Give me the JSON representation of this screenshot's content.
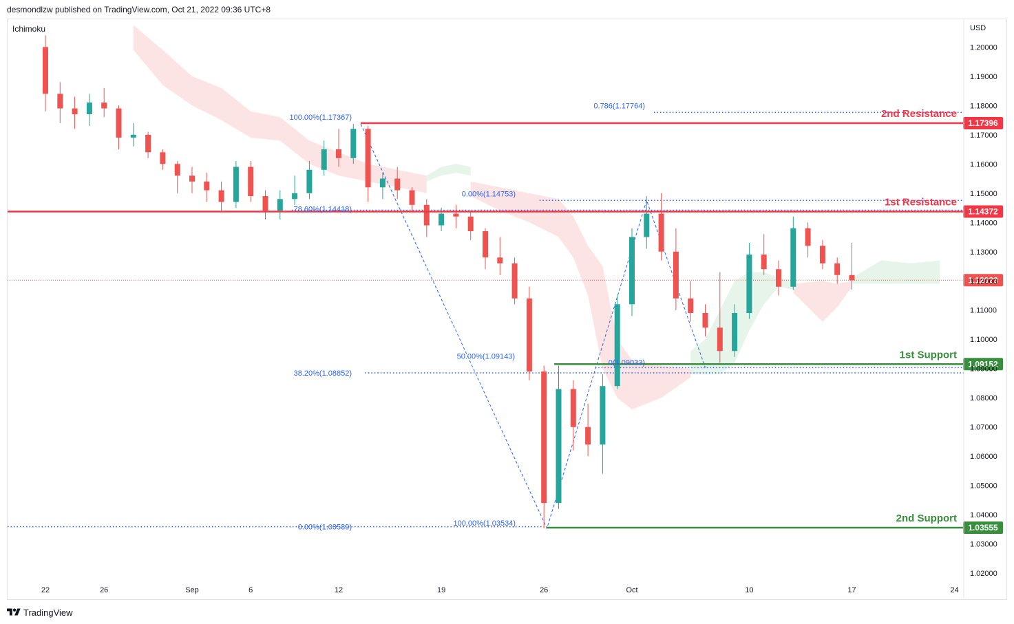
{
  "header": {
    "published_line": "desmondlzw published on TradingView.com, Oct 21, 2022 09:36 UTC+8"
  },
  "footer": {
    "brand": "TradingView"
  },
  "colors": {
    "bull": "#26a69a",
    "bear": "#ef5350",
    "resistance": "#f23645",
    "support": "#388e3c",
    "fib": "#2962ff",
    "cloud_bear": "#fce4e4",
    "cloud_bull": "#e6f4ea"
  },
  "chart_data": {
    "type": "candlestick",
    "instrument_label": "Ichimoku",
    "currency": "USD",
    "ylim": [
      1.0165,
      1.2095
    ],
    "y_ticks": [
      "1.20000",
      "1.19000",
      "1.18000",
      "1.17000",
      "1.16000",
      "1.15000",
      "1.14000",
      "1.13000",
      "1.12000",
      "1.11000",
      "1.10000",
      "1.09000",
      "1.08000",
      "1.07000",
      "1.06000",
      "1.05000",
      "1.04000",
      "1.03000",
      "1.02000"
    ],
    "x_ticks": [
      {
        "label": "22",
        "t": 0
      },
      {
        "label": "26",
        "t": 4
      },
      {
        "label": "Sep",
        "t": 10
      },
      {
        "label": "6",
        "t": 14
      },
      {
        "label": "12",
        "t": 20
      },
      {
        "label": "19",
        "t": 27
      },
      {
        "label": "26",
        "t": 34
      },
      {
        "label": "Oct",
        "t": 40
      },
      {
        "label": "10",
        "t": 48
      },
      {
        "label": "17",
        "t": 55
      },
      {
        "label": "24",
        "t": 62
      }
    ],
    "price_levels": [
      {
        "name": "2nd Resistance",
        "value": 1.17396,
        "label": "1.17396",
        "kind": "resistance"
      },
      {
        "name": "1st Resistance",
        "value": 1.14372,
        "label": "1.14372",
        "kind": "resistance"
      },
      {
        "name": "1st Support",
        "value": 1.09152,
        "label": "1.09152",
        "kind": "support"
      },
      {
        "name": "2nd Support",
        "value": 1.03555,
        "label": "1.03555",
        "kind": "support"
      }
    ],
    "last_price": {
      "value": 1.12023,
      "label": "1.12023"
    },
    "fib_labels": [
      {
        "text": "100.00%(1.17367)",
        "value": 1.17367
      },
      {
        "text": "78.60%(1.14418)",
        "value": 1.14418
      },
      {
        "text": "38.20%(1.08852)",
        "value": 1.08852
      },
      {
        "text": "0.00%(1.03589)",
        "value": 1.03589
      },
      {
        "text": "0.00%(1.14753)",
        "value": 1.14753
      },
      {
        "text": "50.00%(1.09143)",
        "value": 1.09143
      },
      {
        "text": "100.00%(1.03534)",
        "value": 1.03534
      },
      {
        "text": "0(1.09033)",
        "value": 1.09033
      },
      {
        "text": "0.786(1.17764)",
        "value": 1.17764
      }
    ],
    "swing_path": [
      {
        "t": 21.5,
        "v": 1.17367
      },
      {
        "t": 34.2,
        "v": 1.03534
      },
      {
        "t": 41.0,
        "v": 1.14753
      },
      {
        "t": 45.0,
        "v": 1.09033
      }
    ],
    "candles": [
      {
        "t": 0,
        "o": 1.2,
        "h": 1.204,
        "l": 1.178,
        "c": 1.184
      },
      {
        "t": 1,
        "o": 1.184,
        "h": 1.188,
        "l": 1.174,
        "c": 1.179
      },
      {
        "t": 2,
        "o": 1.179,
        "h": 1.183,
        "l": 1.172,
        "c": 1.177
      },
      {
        "t": 3,
        "o": 1.177,
        "h": 1.184,
        "l": 1.173,
        "c": 1.181
      },
      {
        "t": 4,
        "o": 1.181,
        "h": 1.186,
        "l": 1.176,
        "c": 1.179
      },
      {
        "t": 5,
        "o": 1.179,
        "h": 1.18,
        "l": 1.165,
        "c": 1.169
      },
      {
        "t": 6,
        "o": 1.169,
        "h": 1.174,
        "l": 1.166,
        "c": 1.17
      },
      {
        "t": 7,
        "o": 1.17,
        "h": 1.171,
        "l": 1.162,
        "c": 1.164
      },
      {
        "t": 8,
        "o": 1.164,
        "h": 1.165,
        "l": 1.158,
        "c": 1.16
      },
      {
        "t": 9,
        "o": 1.16,
        "h": 1.161,
        "l": 1.15,
        "c": 1.156
      },
      {
        "t": 10,
        "o": 1.156,
        "h": 1.159,
        "l": 1.15,
        "c": 1.154
      },
      {
        "t": 11,
        "o": 1.154,
        "h": 1.157,
        "l": 1.147,
        "c": 1.151
      },
      {
        "t": 12,
        "o": 1.151,
        "h": 1.154,
        "l": 1.144,
        "c": 1.147
      },
      {
        "t": 13,
        "o": 1.147,
        "h": 1.161,
        "l": 1.145,
        "c": 1.159
      },
      {
        "t": 14,
        "o": 1.159,
        "h": 1.161,
        "l": 1.147,
        "c": 1.149
      },
      {
        "t": 15,
        "o": 1.149,
        "h": 1.151,
        "l": 1.141,
        "c": 1.144
      },
      {
        "t": 16,
        "o": 1.144,
        "h": 1.151,
        "l": 1.141,
        "c": 1.148
      },
      {
        "t": 17,
        "o": 1.148,
        "h": 1.156,
        "l": 1.146,
        "c": 1.15
      },
      {
        "t": 18,
        "o": 1.15,
        "h": 1.161,
        "l": 1.148,
        "c": 1.158
      },
      {
        "t": 19,
        "o": 1.158,
        "h": 1.168,
        "l": 1.156,
        "c": 1.165
      },
      {
        "t": 20,
        "o": 1.165,
        "h": 1.172,
        "l": 1.159,
        "c": 1.162
      },
      {
        "t": 21,
        "o": 1.162,
        "h": 1.1737,
        "l": 1.16,
        "c": 1.172
      },
      {
        "t": 22,
        "o": 1.172,
        "h": 1.173,
        "l": 1.147,
        "c": 1.152
      },
      {
        "t": 23,
        "o": 1.152,
        "h": 1.157,
        "l": 1.148,
        "c": 1.155
      },
      {
        "t": 24,
        "o": 1.155,
        "h": 1.159,
        "l": 1.148,
        "c": 1.151
      },
      {
        "t": 25,
        "o": 1.151,
        "h": 1.152,
        "l": 1.144,
        "c": 1.146
      },
      {
        "t": 26,
        "o": 1.146,
        "h": 1.148,
        "l": 1.135,
        "c": 1.139
      },
      {
        "t": 27,
        "o": 1.139,
        "h": 1.145,
        "l": 1.137,
        "c": 1.143
      },
      {
        "t": 28,
        "o": 1.143,
        "h": 1.146,
        "l": 1.138,
        "c": 1.142
      },
      {
        "t": 29,
        "o": 1.142,
        "h": 1.144,
        "l": 1.134,
        "c": 1.137
      },
      {
        "t": 30,
        "o": 1.137,
        "h": 1.138,
        "l": 1.124,
        "c": 1.128
      },
      {
        "t": 31,
        "o": 1.128,
        "h": 1.135,
        "l": 1.122,
        "c": 1.126
      },
      {
        "t": 32,
        "o": 1.126,
        "h": 1.128,
        "l": 1.112,
        "c": 1.114
      },
      {
        "t": 33,
        "o": 1.114,
        "h": 1.118,
        "l": 1.086,
        "c": 1.089
      },
      {
        "t": 34,
        "o": 1.089,
        "h": 1.091,
        "l": 1.0353,
        "c": 1.044
      },
      {
        "t": 35,
        "o": 1.044,
        "h": 1.091,
        "l": 1.042,
        "c": 1.083
      },
      {
        "t": 36,
        "o": 1.083,
        "h": 1.086,
        "l": 1.062,
        "c": 1.07
      },
      {
        "t": 37,
        "o": 1.07,
        "h": 1.078,
        "l": 1.06,
        "c": 1.064
      },
      {
        "t": 38,
        "o": 1.064,
        "h": 1.088,
        "l": 1.054,
        "c": 1.084
      },
      {
        "t": 39,
        "o": 1.084,
        "h": 1.115,
        "l": 1.083,
        "c": 1.112
      },
      {
        "t": 40,
        "o": 1.112,
        "h": 1.138,
        "l": 1.108,
        "c": 1.135
      },
      {
        "t": 41,
        "o": 1.135,
        "h": 1.149,
        "l": 1.131,
        "c": 1.143
      },
      {
        "t": 42,
        "o": 1.143,
        "h": 1.15,
        "l": 1.127,
        "c": 1.13
      },
      {
        "t": 43,
        "o": 1.13,
        "h": 1.138,
        "l": 1.11,
        "c": 1.114
      },
      {
        "t": 44,
        "o": 1.114,
        "h": 1.12,
        "l": 1.106,
        "c": 1.109
      },
      {
        "t": 45,
        "o": 1.109,
        "h": 1.112,
        "l": 1.101,
        "c": 1.104
      },
      {
        "t": 46,
        "o": 1.104,
        "h": 1.123,
        "l": 1.092,
        "c": 1.096
      },
      {
        "t": 47,
        "o": 1.096,
        "h": 1.112,
        "l": 1.094,
        "c": 1.109
      },
      {
        "t": 48,
        "o": 1.109,
        "h": 1.133,
        "l": 1.107,
        "c": 1.129
      },
      {
        "t": 49,
        "o": 1.129,
        "h": 1.136,
        "l": 1.122,
        "c": 1.124
      },
      {
        "t": 50,
        "o": 1.124,
        "h": 1.127,
        "l": 1.115,
        "c": 1.118
      },
      {
        "t": 51,
        "o": 1.118,
        "h": 1.142,
        "l": 1.117,
        "c": 1.138
      },
      {
        "t": 52,
        "o": 1.138,
        "h": 1.14,
        "l": 1.128,
        "c": 1.132
      },
      {
        "t": 53,
        "o": 1.132,
        "h": 1.134,
        "l": 1.124,
        "c": 1.126
      },
      {
        "t": 54,
        "o": 1.126,
        "h": 1.128,
        "l": 1.119,
        "c": 1.122
      },
      {
        "t": 55,
        "o": 1.122,
        "h": 1.133,
        "l": 1.117,
        "c": 1.1202
      }
    ],
    "cloud_bear": [
      {
        "t": 6,
        "top": 1.2075,
        "bot": 1.199
      },
      {
        "t": 8,
        "top": 1.199,
        "bot": 1.187
      },
      {
        "t": 10,
        "top": 1.19,
        "bot": 1.18
      },
      {
        "t": 12,
        "top": 1.186,
        "bot": 1.175
      },
      {
        "t": 14,
        "top": 1.178,
        "bot": 1.169
      },
      {
        "t": 16,
        "top": 1.176,
        "bot": 1.168
      },
      {
        "t": 18,
        "top": 1.168,
        "bot": 1.16
      },
      {
        "t": 20,
        "top": 1.164,
        "bot": 1.156
      },
      {
        "t": 22,
        "top": 1.16,
        "bot": 1.154
      },
      {
        "t": 24,
        "top": 1.158,
        "bot": 1.152
      },
      {
        "t": 26,
        "top": 1.156,
        "bot": 1.15
      }
    ],
    "cloud_bull_small": [
      {
        "t": 26,
        "top": 1.156,
        "bot": 1.154
      },
      {
        "t": 27,
        "top": 1.159,
        "bot": 1.156
      },
      {
        "t": 28,
        "top": 1.16,
        "bot": 1.157
      },
      {
        "t": 29,
        "top": 1.159,
        "bot": 1.156
      }
    ],
    "cloud_bear2": [
      {
        "t": 29,
        "top": 1.154,
        "bot": 1.149
      },
      {
        "t": 31,
        "top": 1.152,
        "bot": 1.144
      },
      {
        "t": 33,
        "top": 1.15,
        "bot": 1.14
      },
      {
        "t": 35,
        "top": 1.148,
        "bot": 1.135
      },
      {
        "t": 36,
        "top": 1.142,
        "bot": 1.128
      },
      {
        "t": 37,
        "top": 1.132,
        "bot": 1.115
      },
      {
        "t": 38,
        "top": 1.125,
        "bot": 1.09
      },
      {
        "t": 39,
        "top": 1.1,
        "bot": 1.08
      },
      {
        "t": 40,
        "top": 1.093,
        "bot": 1.076
      },
      {
        "t": 42,
        "top": 1.091,
        "bot": 1.08
      },
      {
        "t": 44,
        "top": 1.09,
        "bot": 1.087
      }
    ],
    "cloud_bull": [
      {
        "t": 44,
        "top": 1.096,
        "bot": 1.088
      },
      {
        "t": 45,
        "top": 1.1,
        "bot": 1.088
      },
      {
        "t": 46,
        "top": 1.11,
        "bot": 1.088
      },
      {
        "t": 47,
        "top": 1.12,
        "bot": 1.092
      },
      {
        "t": 48,
        "top": 1.123,
        "bot": 1.103
      },
      {
        "t": 49,
        "top": 1.123,
        "bot": 1.112
      },
      {
        "t": 50,
        "top": 1.121,
        "bot": 1.118
      },
      {
        "t": 51,
        "top": 1.12,
        "bot": 1.117
      }
    ],
    "cloud_bear3": [
      {
        "t": 51,
        "top": 1.119,
        "bot": 1.116
      },
      {
        "t": 53,
        "top": 1.12,
        "bot": 1.106
      },
      {
        "t": 54,
        "top": 1.119,
        "bot": 1.111
      },
      {
        "t": 55,
        "top": 1.12,
        "bot": 1.118
      }
    ],
    "cloud_bull3": [
      {
        "t": 55,
        "top": 1.121,
        "bot": 1.119
      },
      {
        "t": 57,
        "top": 1.127,
        "bot": 1.119
      },
      {
        "t": 59,
        "top": 1.126,
        "bot": 1.119
      },
      {
        "t": 61,
        "top": 1.127,
        "bot": 1.119
      }
    ]
  }
}
